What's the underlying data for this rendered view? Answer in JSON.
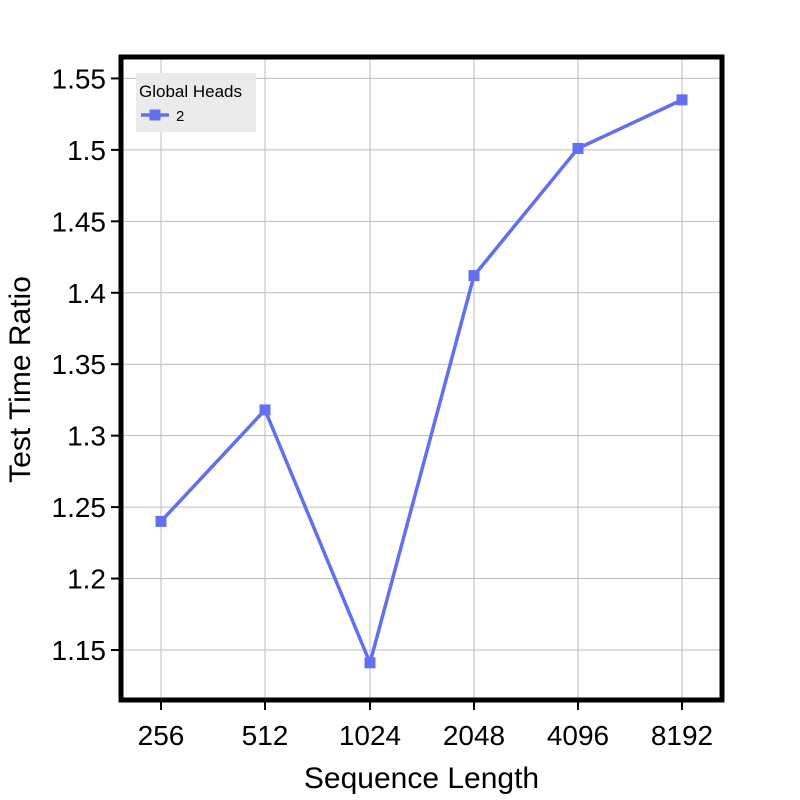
{
  "chart_data": {
    "type": "line",
    "xlabel": "Sequence Length",
    "ylabel": "Test Time Ratio",
    "categories": [
      "256",
      "512",
      "1024",
      "2048",
      "4096",
      "8192"
    ],
    "x_scale": "categorical",
    "ylim": [
      1.115,
      1.565
    ],
    "yticks": [
      1.15,
      1.2,
      1.25,
      1.3,
      1.35,
      1.4,
      1.45,
      1.5,
      1.55
    ],
    "ytick_labels": [
      "1.15",
      "1.2",
      "1.25",
      "1.3",
      "1.35",
      "1.4",
      "1.45",
      "1.5",
      "1.55"
    ],
    "grid": true,
    "legend": {
      "title": "Global Heads",
      "position": "top-left"
    },
    "series": [
      {
        "name": "2",
        "marker": "square",
        "color": "#6270f0",
        "values": [
          1.24,
          1.318,
          1.141,
          1.412,
          1.501,
          1.535
        ]
      }
    ]
  },
  "colors": {
    "series": "#6270f0",
    "grid": "#bdbdbd",
    "frame": "#000000",
    "legend_bg": "#ebebeb"
  }
}
